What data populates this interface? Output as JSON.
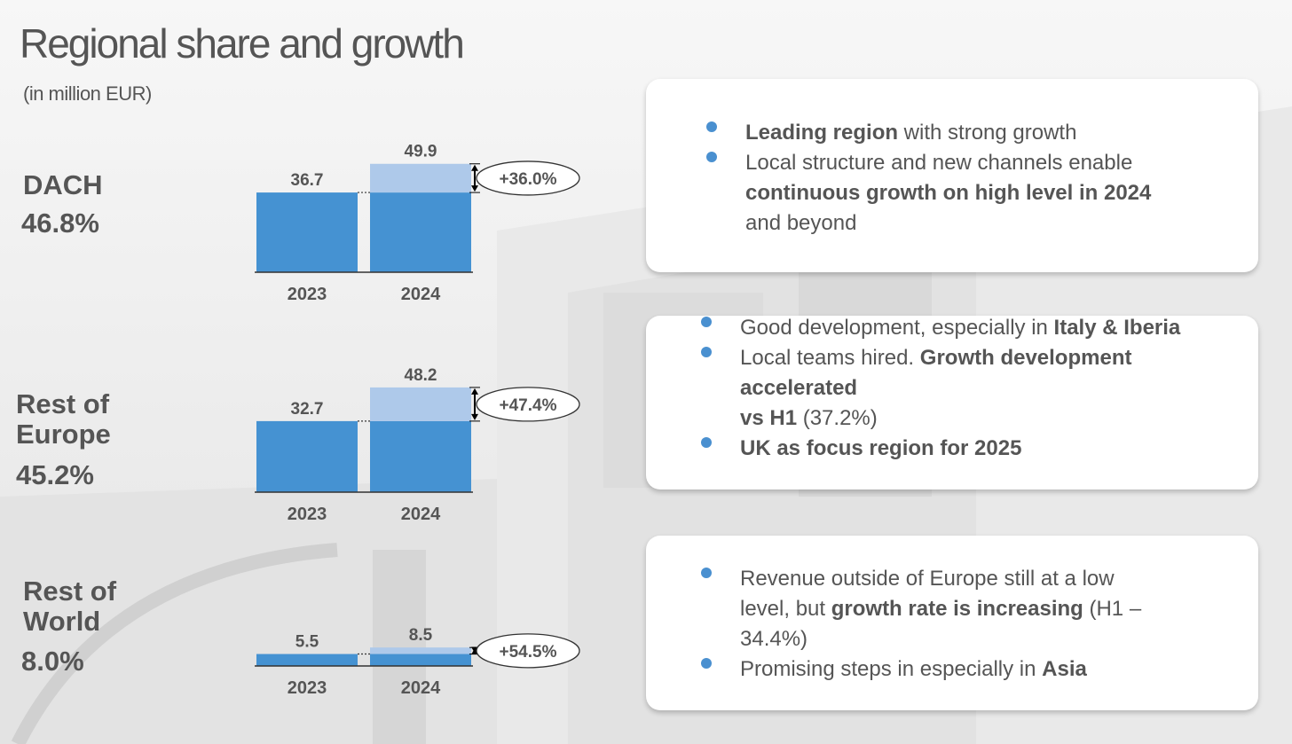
{
  "title": "Regional share and growth",
  "subtitle": "(in million EUR)",
  "colors": {
    "base_bar": "#4592d2",
    "growth_bar": "#aec9ea",
    "bullet": "#4a90d0",
    "text": "#555555"
  },
  "regions": [
    {
      "name_lines": [
        "DACH"
      ],
      "share": "46.8%",
      "growth_label": "+36.0%",
      "bullets": [
        [
          {
            "text": "Leading region",
            "bold": true
          },
          {
            "text": " with strong growth",
            "bold": false
          }
        ],
        [
          {
            "text": "Local structure and new channels enable ",
            "bold": false
          },
          {
            "text": "continuous growth on high level in 2024",
            "bold": true
          },
          {
            "text": " and beyond",
            "bold": false
          }
        ]
      ]
    },
    {
      "name_lines": [
        "Rest of",
        "Europe"
      ],
      "share": "45.2%",
      "growth_label": "+47.4%",
      "bullets": [
        [
          {
            "text": "Good development, especially in ",
            "bold": false
          },
          {
            "text": "Italy & Iberia",
            "bold": true
          }
        ],
        [
          {
            "text": "Local teams hired. ",
            "bold": false
          },
          {
            "text": "Growth development accelerated",
            "bold": true
          },
          {
            "text": "\n",
            "bold": false
          },
          {
            "text": "vs H1",
            "bold": true
          },
          {
            "text": " (37.2%)",
            "bold": false
          }
        ],
        [
          {
            "text": "UK as focus region for 2025",
            "bold": true
          }
        ]
      ]
    },
    {
      "name_lines": [
        "Rest of",
        "World"
      ],
      "share": "8.0%",
      "growth_label": "+54.5%",
      "bullets": [
        [
          {
            "text": "Revenue outside of Europe still at a low level, but ",
            "bold": false
          },
          {
            "text": "growth rate is increasing",
            "bold": true
          },
          {
            "text": " (H1 – 34.4%)",
            "bold": false
          }
        ],
        [
          {
            "text": "Promising steps in especially in ",
            "bold": false
          },
          {
            "text": "Asia",
            "bold": true
          }
        ]
      ]
    }
  ],
  "chart_data": [
    {
      "type": "bar",
      "title": "DACH",
      "categories": [
        "2023",
        "2024"
      ],
      "values": [
        36.7,
        49.9
      ],
      "value_labels": [
        "36.7",
        "49.9"
      ],
      "growth": "+36.0%"
    },
    {
      "type": "bar",
      "title": "Rest of Europe",
      "categories": [
        "2023",
        "2024"
      ],
      "values": [
        32.7,
        48.2
      ],
      "value_labels": [
        "32.7",
        "48.2"
      ],
      "growth": "+47.4%"
    },
    {
      "type": "bar",
      "title": "Rest of World",
      "categories": [
        "2023",
        "2024"
      ],
      "values": [
        5.5,
        8.5
      ],
      "value_labels": [
        "5.5",
        "8.5"
      ],
      "growth": "+54.5%"
    }
  ]
}
